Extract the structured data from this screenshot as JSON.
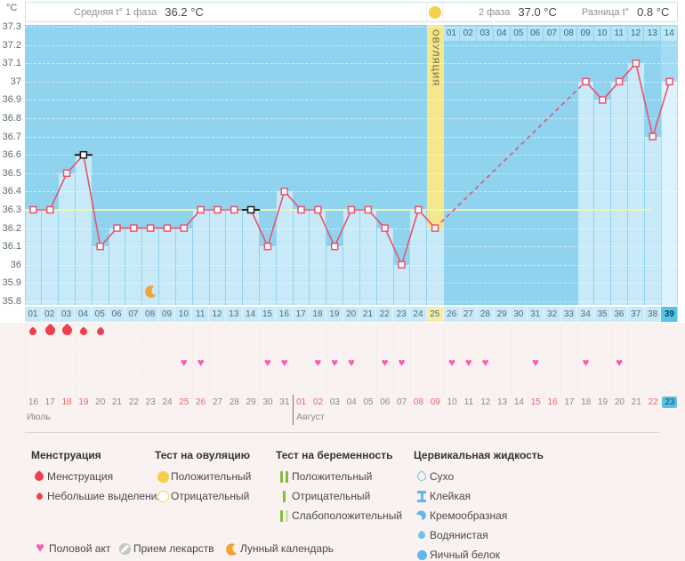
{
  "header": {
    "y_axis_unit": "°C",
    "avg_phase1_label": "Средняя t° 1 фаза",
    "avg_phase1_value": "36.2 °C",
    "phase2_label": "2 фаза",
    "phase2_value": "37.0 °C",
    "diff_label": "Разница t°",
    "diff_value": "0.8 °C"
  },
  "colors": {
    "plot_bg": "#8fd3ef",
    "bar": "#c7e9f8",
    "bar_today": "#dcf2fc",
    "ovulation_band": "#f7e78c",
    "temp_line": "#e8536f",
    "coverline": "#f6f2a3",
    "day_row_bg": "#c9e9f7",
    "today_highlight": "#58c3e9",
    "heart": "#f85cb5",
    "menstruation_drop": "#ef3e4d",
    "moon": "#f2a236",
    "ovulation_test": "#f6cf4a",
    "pregnancy_test": "#86bc42",
    "cervical_fluid": "#5fb8e8",
    "weekend_date": "#f2636e"
  },
  "chart_data": {
    "type": "line",
    "ylabel": "°C",
    "ylim": [
      35.8,
      37.3
    ],
    "ytick_step": 0.1,
    "coverline": 36.3,
    "grid": "horizontal-dashed",
    "day_labels": [
      "01",
      "02",
      "03",
      "04",
      "05",
      "06",
      "07",
      "08",
      "09",
      "10",
      "11",
      "12",
      "13",
      "14",
      "15",
      "16",
      "17",
      "18",
      "19",
      "20",
      "21",
      "22",
      "23",
      "24",
      "25",
      "26",
      "27",
      "28",
      "29",
      "30",
      "31",
      "32",
      "33",
      "34",
      "35",
      "36",
      "37",
      "38",
      "39"
    ],
    "temps": [
      36.3,
      36.3,
      36.5,
      36.6,
      36.1,
      36.2,
      36.2,
      36.2,
      36.2,
      36.2,
      36.3,
      36.3,
      36.3,
      36.3,
      36.1,
      36.4,
      36.3,
      36.3,
      36.1,
      36.3,
      36.3,
      36.2,
      36.0,
      36.3,
      36.2,
      null,
      null,
      null,
      null,
      null,
      null,
      null,
      null,
      37.0,
      36.9,
      37.0,
      37.1,
      36.7,
      37.0
    ],
    "marked_days": [
      4,
      14
    ],
    "dashed_gap": [
      25,
      34
    ],
    "ovulation_day": 25,
    "ovulation_band_label": "ОВУЛЯЦИЯ",
    "dpo_labels": [
      "01",
      "02",
      "03",
      "04",
      "05",
      "06",
      "07",
      "08",
      "09",
      "10",
      "11",
      "12",
      "13",
      "14"
    ],
    "moon_day": 8,
    "current_day": 39,
    "menstruation_days": [
      {
        "day": 1,
        "size": "small"
      },
      {
        "day": 2,
        "size": "large"
      },
      {
        "day": 3,
        "size": "large"
      },
      {
        "day": 4,
        "size": "small"
      },
      {
        "day": 5,
        "size": "small"
      }
    ],
    "intercourse_days": [
      10,
      11,
      15,
      16,
      18,
      19,
      20,
      22,
      23,
      26,
      27,
      28,
      31,
      34,
      36
    ],
    "months": [
      {
        "name": "Июль",
        "days": 16
      },
      {
        "name": "Август",
        "days": 23
      }
    ],
    "dates": [
      {
        "label": "16"
      },
      {
        "label": "17"
      },
      {
        "label": "18",
        "weekend": true
      },
      {
        "label": "19",
        "weekend": true
      },
      {
        "label": "20"
      },
      {
        "label": "21"
      },
      {
        "label": "22"
      },
      {
        "label": "23"
      },
      {
        "label": "24"
      },
      {
        "label": "25",
        "weekend": true
      },
      {
        "label": "26",
        "weekend": true
      },
      {
        "label": "27"
      },
      {
        "label": "28"
      },
      {
        "label": "29"
      },
      {
        "label": "30"
      },
      {
        "label": "31"
      },
      {
        "label": "01",
        "weekend": true
      },
      {
        "label": "02",
        "weekend": true
      },
      {
        "label": "03"
      },
      {
        "label": "04"
      },
      {
        "label": "05"
      },
      {
        "label": "06"
      },
      {
        "label": "07"
      },
      {
        "label": "08",
        "weekend": true
      },
      {
        "label": "09",
        "weekend": true
      },
      {
        "label": "10"
      },
      {
        "label": "11"
      },
      {
        "label": "12"
      },
      {
        "label": "13"
      },
      {
        "label": "14"
      },
      {
        "label": "15",
        "weekend": true
      },
      {
        "label": "16",
        "weekend": true
      },
      {
        "label": "17"
      },
      {
        "label": "18"
      },
      {
        "label": "19"
      },
      {
        "label": "20"
      },
      {
        "label": "21"
      },
      {
        "label": "22",
        "weekend": true
      },
      {
        "label": "23",
        "today": true
      }
    ]
  },
  "legend": {
    "columns": [
      {
        "title": "Менструация",
        "items": [
          {
            "icon": "drop-large",
            "label": "Менструация"
          },
          {
            "icon": "drop-small",
            "label": "Небольшие выделения"
          }
        ]
      },
      {
        "title": "Тест на овуляцию",
        "items": [
          {
            "icon": "circle-yellow-filled",
            "label": "Положительный"
          },
          {
            "icon": "circle-yellow-outline",
            "label": "Отрицательный"
          }
        ]
      },
      {
        "title": "Тест на беременность",
        "items": [
          {
            "icon": "bars-two-green",
            "label": "Положительный"
          },
          {
            "icon": "bar-one-green",
            "label": "Отрицательный"
          },
          {
            "icon": "bars-two-green-faded",
            "label": "Слабоположительный"
          }
        ]
      },
      {
        "title": "Цервикальная жидкость",
        "items": [
          {
            "icon": "drop-outline-blue",
            "label": "Сухо"
          },
          {
            "icon": "sticky-blue",
            "label": "Клейкая"
          },
          {
            "icon": "creamy-blue",
            "label": "Кремообразная"
          },
          {
            "icon": "drop-blue",
            "label": "Водянистая"
          },
          {
            "icon": "circle-blue",
            "label": "Яичный белок"
          }
        ]
      }
    ],
    "bottom_items": [
      {
        "icon": "heart-pink",
        "label": "Половой акт"
      },
      {
        "icon": "pill-gray",
        "label": "Прием лекарств"
      },
      {
        "icon": "moon-orange",
        "label": "Лунный календарь"
      }
    ]
  }
}
